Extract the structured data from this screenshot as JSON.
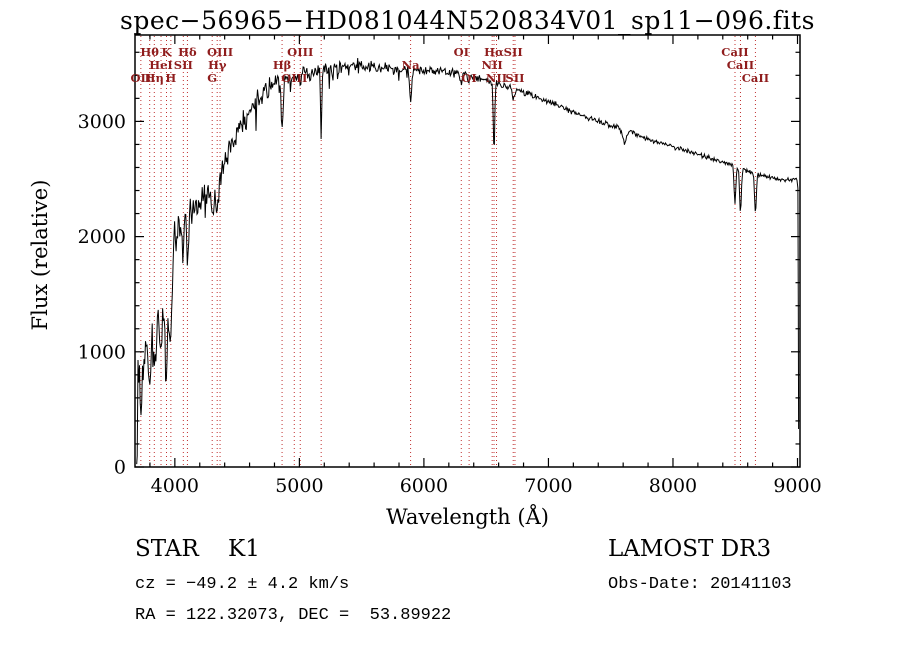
{
  "title": "spec−56965−HD081044N520834V01_sp11−096.fits",
  "chart_data": {
    "type": "line",
    "title": "spec−56965−HD081044N520834V01_sp11−096.fits",
    "xlabel": "Wavelength (Å)",
    "ylabel": "Flux (relative)",
    "xlim": [
      3680,
      9020
    ],
    "ylim": [
      0,
      3750
    ],
    "x_ticks": [
      4000,
      5000,
      6000,
      7000,
      8000,
      9000
    ],
    "y_ticks": [
      0,
      1000,
      2000,
      3000
    ],
    "minor_tick_step": 200,
    "grid": false,
    "frame_color": "#000000",
    "trace_color": "#000000",
    "marker_line_color": "#c03030",
    "marker_label_color": "#8f1d1d",
    "series": [
      {
        "name": "spectrum",
        "continuum": [
          [
            3692,
            260
          ],
          [
            3705,
            850
          ],
          [
            3720,
            1000
          ],
          [
            3745,
            1020
          ],
          [
            3775,
            1060
          ],
          [
            3805,
            1100
          ],
          [
            3835,
            1220
          ],
          [
            3865,
            1330
          ],
          [
            3900,
            1420
          ],
          [
            3935,
            1480
          ],
          [
            3965,
            1550
          ],
          [
            4000,
            2020
          ],
          [
            4060,
            2160
          ],
          [
            4120,
            2260
          ],
          [
            4200,
            2300
          ],
          [
            4280,
            2440
          ],
          [
            4360,
            2560
          ],
          [
            4440,
            2780
          ],
          [
            4520,
            2950
          ],
          [
            4600,
            3090
          ],
          [
            4700,
            3240
          ],
          [
            4800,
            3330
          ],
          [
            4900,
            3380
          ],
          [
            5000,
            3400
          ],
          [
            5150,
            3430
          ],
          [
            5300,
            3470
          ],
          [
            5450,
            3490
          ],
          [
            5600,
            3470
          ],
          [
            5750,
            3450
          ],
          [
            5900,
            3445
          ],
          [
            6050,
            3440
          ],
          [
            6200,
            3430
          ],
          [
            6350,
            3400
          ],
          [
            6500,
            3360
          ],
          [
            6650,
            3310
          ],
          [
            6800,
            3255
          ],
          [
            6950,
            3190
          ],
          [
            7100,
            3130
          ],
          [
            7250,
            3060
          ],
          [
            7400,
            3000
          ],
          [
            7550,
            2950
          ],
          [
            7700,
            2890
          ],
          [
            7850,
            2830
          ],
          [
            8000,
            2780
          ],
          [
            8150,
            2730
          ],
          [
            8300,
            2680
          ],
          [
            8450,
            2630
          ],
          [
            8600,
            2565
          ],
          [
            8750,
            2520
          ],
          [
            8900,
            2495
          ],
          [
            9000,
            2500
          ]
        ],
        "dips": [
          {
            "center": 3727,
            "depth": 550,
            "width": 10
          },
          {
            "center": 3798,
            "depth": 480,
            "width": 9
          },
          {
            "center": 3835,
            "depth": 470,
            "width": 9
          },
          {
            "center": 3889,
            "depth": 330,
            "width": 9
          },
          {
            "center": 3933,
            "depth": 720,
            "width": 10
          },
          {
            "center": 3968,
            "depth": 540,
            "width": 10
          },
          {
            "center": 4068,
            "depth": 260,
            "width": 8
          },
          {
            "center": 4101,
            "depth": 480,
            "width": 9
          },
          {
            "center": 4300,
            "depth": 300,
            "width": 12
          },
          {
            "center": 4340,
            "depth": 260,
            "width": 9
          },
          {
            "center": 4363,
            "depth": 130,
            "width": 8
          },
          {
            "center": 4861,
            "depth": 420,
            "width": 8
          },
          {
            "center": 4959,
            "depth": 70,
            "width": 6
          },
          {
            "center": 5007,
            "depth": 70,
            "width": 6
          },
          {
            "center": 5175,
            "depth": 600,
            "width": 5
          },
          {
            "center": 5893,
            "depth": 280,
            "width": 7
          },
          {
            "center": 6300,
            "depth": 70,
            "width": 6
          },
          {
            "center": 6363,
            "depth": 60,
            "width": 6
          },
          {
            "center": 6563,
            "depth": 580,
            "width": 6
          },
          {
            "center": 6717,
            "depth": 70,
            "width": 6
          },
          {
            "center": 6731,
            "depth": 70,
            "width": 6
          },
          {
            "center": 7610,
            "depth": 110,
            "width": 15
          },
          {
            "center": 8498,
            "depth": 310,
            "width": 7
          },
          {
            "center": 8542,
            "depth": 390,
            "width": 7
          },
          {
            "center": 8662,
            "depth": 340,
            "width": 7
          }
        ],
        "noise_profile": [
          [
            3692,
            280
          ],
          [
            3950,
            260
          ],
          [
            4100,
            190
          ],
          [
            4350,
            150
          ],
          [
            4600,
            120
          ],
          [
            4900,
            95
          ],
          [
            5200,
            75
          ],
          [
            5600,
            60
          ],
          [
            6000,
            48
          ],
          [
            6500,
            38
          ],
          [
            7000,
            31
          ],
          [
            7600,
            27
          ],
          [
            8300,
            24
          ],
          [
            9010,
            22
          ]
        ]
      }
    ],
    "spectral_lines": [
      {
        "wavelength": 3727,
        "label": "OII",
        "row": 2
      },
      {
        "wavelength": 3798,
        "label": "Hθ",
        "row": 0
      },
      {
        "wavelength": 3835,
        "label": "Hη",
        "row": 2
      },
      {
        "wavelength": 3889,
        "label": "HeI",
        "row": 1
      },
      {
        "wavelength": 3933,
        "label": "K",
        "row": 0
      },
      {
        "wavelength": 3968,
        "label": "H",
        "row": 2
      },
      {
        "wavelength": 4068,
        "label": "SII",
        "row": 1
      },
      {
        "wavelength": 4101,
        "label": "Hδ",
        "row": 0
      },
      {
        "wavelength": 4300,
        "label": "G",
        "row": 2
      },
      {
        "wavelength": 4340,
        "label": "Hγ",
        "row": 1
      },
      {
        "wavelength": 4363,
        "label": "OIII",
        "row": 0
      },
      {
        "wavelength": 4861,
        "label": "Hβ",
        "row": 1
      },
      {
        "wavelength": 4959,
        "label": "OIII",
        "row": 2
      },
      {
        "wavelength": 5007,
        "label": "OIII",
        "row": 0
      },
      {
        "wavelength": 5175,
        "label": "",
        "row": 0
      },
      {
        "wavelength": 5893,
        "label": "Na",
        "row": 1
      },
      {
        "wavelength": 6300,
        "label": "OI",
        "row": 0
      },
      {
        "wavelength": 6363,
        "label": "OI",
        "row": 2
      },
      {
        "wavelength": 6548,
        "label": "NII",
        "row": 1
      },
      {
        "wavelength": 6563,
        "label": "Hα",
        "row": 0
      },
      {
        "wavelength": 6583,
        "label": "NII",
        "row": 2
      },
      {
        "wavelength": 6717,
        "label": "SII",
        "row": 0
      },
      {
        "wavelength": 6731,
        "label": "SII",
        "row": 2
      },
      {
        "wavelength": 8498,
        "label": "CaII",
        "row": 0
      },
      {
        "wavelength": 8542,
        "label": "CaII",
        "row": 1
      },
      {
        "wavelength": 8662,
        "label": "CaII",
        "row": 2
      }
    ]
  },
  "annotations": {
    "classification": "STAR    K1",
    "survey": "LAMOST DR3",
    "velocity": "cz = −49.2 ± 4.2 km/s",
    "obs_date": "Obs-Date: 20141103",
    "coordinates": "RA = 122.32073, DEC =  53.89922"
  }
}
